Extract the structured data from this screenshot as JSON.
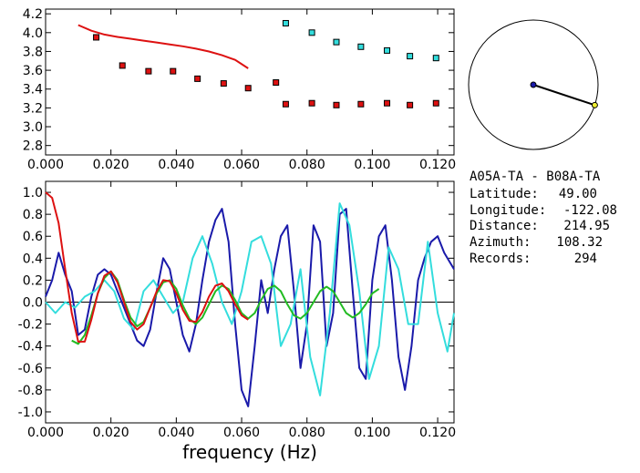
{
  "station_pair": "A05A-TA  -  B08A-TA",
  "info_rows": [
    {
      "label": "Latitude:",
      "value": "49.00"
    },
    {
      "label": "Longitude:",
      "value": "-122.08"
    },
    {
      "label": "Distance:",
      "value": "214.95"
    },
    {
      "label": "Azimuth:",
      "value": "108.32"
    },
    {
      "label": "Records:",
      "value": "294"
    }
  ],
  "colors": {
    "model_curve": "#dd1111",
    "marker_red": "#dd1111",
    "marker_cyan": "#33dddd",
    "blue": "#1a1aaa",
    "cyan": "#33dddd",
    "green": "#22bb22",
    "red": "#dd1111",
    "azimuth_line": "#000000",
    "azimuth_dot": "#1a1aaa",
    "azimuth_end": "#eeee33"
  },
  "chart_data": [
    {
      "type": "scatter",
      "xlim": [
        0.0,
        0.125
      ],
      "ylim": [
        2.7,
        4.25
      ],
      "x_ticks": [
        0.0,
        0.02,
        0.04,
        0.06,
        0.08,
        0.1,
        0.12
      ],
      "x_tick_labels": [
        "0.000",
        "0.020",
        "0.040",
        "0.060",
        "0.080",
        "0.100",
        "0.120"
      ],
      "y_ticks": [
        2.8,
        3.0,
        3.2,
        3.4,
        3.6,
        3.8,
        4.0,
        4.2
      ],
      "y_tick_labels": [
        "2.8",
        "3.0",
        "3.2",
        "3.4",
        "3.6",
        "3.8",
        "4.0",
        "4.2"
      ],
      "line": {
        "x": [
          0.01,
          0.014,
          0.018,
          0.022,
          0.026,
          0.03,
          0.034,
          0.038,
          0.042,
          0.046,
          0.05,
          0.054,
          0.058,
          0.062
        ],
        "y": [
          4.08,
          4.02,
          3.98,
          3.955,
          3.935,
          3.915,
          3.895,
          3.875,
          3.855,
          3.83,
          3.8,
          3.76,
          3.71,
          3.62
        ]
      },
      "series": [
        {
          "values": [
            [
              0.0155,
              3.95
            ],
            [
              0.0235,
              3.65
            ],
            [
              0.0315,
              3.59
            ],
            [
              0.039,
              3.59
            ],
            [
              0.0465,
              3.51
            ],
            [
              0.0545,
              3.46
            ],
            [
              0.062,
              3.41
            ],
            [
              0.0705,
              3.47
            ],
            [
              0.0735,
              3.24
            ],
            [
              0.0815,
              3.25
            ],
            [
              0.089,
              3.23
            ],
            [
              0.0965,
              3.24
            ],
            [
              0.1045,
              3.25
            ],
            [
              0.1115,
              3.23
            ],
            [
              0.1195,
              3.25
            ]
          ]
        },
        {
          "values": [
            [
              0.0735,
              4.1
            ],
            [
              0.0815,
              4.0
            ],
            [
              0.089,
              3.9
            ],
            [
              0.0965,
              3.85
            ],
            [
              0.1045,
              3.81
            ],
            [
              0.1115,
              3.75
            ],
            [
              0.1195,
              3.73
            ]
          ]
        }
      ]
    },
    {
      "type": "line",
      "xlim": [
        0.0,
        0.125
      ],
      "ylim": [
        -1.1,
        1.1
      ],
      "xlabel": "frequency  (Hz)",
      "x_ticks": [
        0.0,
        0.02,
        0.04,
        0.06,
        0.08,
        0.1,
        0.12
      ],
      "x_tick_labels": [
        "0.000",
        "0.020",
        "0.040",
        "0.060",
        "0.080",
        "0.100",
        "0.120"
      ],
      "y_ticks": [
        1.0,
        0.8,
        0.6,
        0.4,
        0.2,
        0.0,
        -0.2,
        -0.4,
        -0.6,
        -0.8,
        -1.0
      ],
      "y_tick_labels": [
        "1.0",
        "0.8",
        "0.6",
        "0.4",
        "0.2",
        "0.0",
        "-0.2",
        "-0.4",
        "-0.6",
        "-0.8",
        "-1.0"
      ],
      "zero_line": true,
      "series": [
        {
          "x": [
            0.0,
            0.002,
            0.004,
            0.006,
            0.008,
            0.01,
            0.012,
            0.014,
            0.016,
            0.018,
            0.02,
            0.022,
            0.024,
            0.026,
            0.028,
            0.03,
            0.032,
            0.034,
            0.036,
            0.038,
            0.04,
            0.042,
            0.044,
            0.046,
            0.048,
            0.05,
            0.052,
            0.054,
            0.056,
            0.058,
            0.06,
            0.062,
            0.064,
            0.066,
            0.068,
            0.07,
            0.072,
            0.074,
            0.076,
            0.078,
            0.08,
            0.082,
            0.084,
            0.086,
            0.088,
            0.09,
            0.092,
            0.094,
            0.096,
            0.098,
            0.1,
            0.102,
            0.104,
            0.106,
            0.108,
            0.11,
            0.112,
            0.114,
            0.116,
            0.118,
            0.12,
            0.122,
            0.125
          ],
          "y": [
            0.05,
            0.2,
            0.45,
            0.25,
            0.1,
            -0.3,
            -0.25,
            0.05,
            0.25,
            0.3,
            0.25,
            0.1,
            -0.05,
            -0.2,
            -0.35,
            -0.4,
            -0.25,
            0.1,
            0.4,
            0.3,
            0.0,
            -0.3,
            -0.45,
            -0.2,
            0.2,
            0.55,
            0.75,
            0.85,
            0.55,
            -0.2,
            -0.8,
            -0.95,
            -0.4,
            0.2,
            -0.1,
            0.3,
            0.6,
            0.7,
            0.1,
            -0.6,
            -0.2,
            0.7,
            0.55,
            -0.4,
            -0.1,
            0.8,
            0.85,
            0.1,
            -0.6,
            -0.7,
            0.2,
            0.6,
            0.7,
            0.2,
            -0.5,
            -0.8,
            -0.4,
            0.2,
            0.4,
            0.55,
            0.6,
            0.45,
            0.3
          ]
        },
        {
          "x": [
            0.0,
            0.003,
            0.006,
            0.009,
            0.012,
            0.015,
            0.018,
            0.021,
            0.024,
            0.027,
            0.03,
            0.033,
            0.036,
            0.039,
            0.042,
            0.045,
            0.048,
            0.051,
            0.054,
            0.057,
            0.06,
            0.063,
            0.066,
            0.069,
            0.072,
            0.075,
            0.078,
            0.081,
            0.084,
            0.087,
            0.09,
            0.093,
            0.096,
            0.099,
            0.102,
            0.105,
            0.108,
            0.111,
            0.114,
            0.117,
            0.12,
            0.123,
            0.125
          ],
          "y": [
            0.0,
            -0.1,
            0.0,
            -0.05,
            0.05,
            0.1,
            0.2,
            0.1,
            -0.15,
            -0.25,
            0.1,
            0.2,
            0.05,
            -0.1,
            0.0,
            0.4,
            0.6,
            0.35,
            0.0,
            -0.2,
            0.1,
            0.55,
            0.6,
            0.35,
            -0.4,
            -0.2,
            0.3,
            -0.5,
            -0.85,
            -0.1,
            0.9,
            0.7,
            0.1,
            -0.7,
            -0.4,
            0.5,
            0.3,
            -0.2,
            -0.2,
            0.55,
            -0.1,
            -0.45,
            -0.1
          ]
        },
        {
          "x": [
            0.008,
            0.01,
            0.012,
            0.014,
            0.016,
            0.018,
            0.02,
            0.022,
            0.024,
            0.026,
            0.028,
            0.03,
            0.032,
            0.034,
            0.036,
            0.038,
            0.04,
            0.042,
            0.044,
            0.046,
            0.048,
            0.05,
            0.052,
            0.054,
            0.056,
            0.058,
            0.06,
            0.062,
            0.064,
            0.066,
            0.068,
            0.07,
            0.072,
            0.074,
            0.076,
            0.078,
            0.08,
            0.082,
            0.084,
            0.086,
            0.088,
            0.09,
            0.092,
            0.094,
            0.096,
            0.098,
            0.1,
            0.102
          ],
          "y": [
            -0.35,
            -0.38,
            -0.3,
            -0.12,
            0.08,
            0.22,
            0.28,
            0.2,
            0.02,
            -0.14,
            -0.22,
            -0.18,
            -0.05,
            0.08,
            0.18,
            0.2,
            0.12,
            -0.03,
            -0.15,
            -0.2,
            -0.14,
            -0.02,
            0.1,
            0.15,
            0.12,
            0.02,
            -0.1,
            -0.15,
            -0.1,
            0.02,
            0.12,
            0.15,
            0.1,
            -0.02,
            -0.12,
            -0.15,
            -0.1,
            0.0,
            0.1,
            0.14,
            0.1,
            0.0,
            -0.1,
            -0.14,
            -0.1,
            -0.02,
            0.08,
            0.12
          ]
        },
        {
          "x": [
            0.0,
            0.002,
            0.004,
            0.006,
            0.008,
            0.01,
            0.012,
            0.014,
            0.016,
            0.018,
            0.02,
            0.022,
            0.024,
            0.026,
            0.028,
            0.03,
            0.032,
            0.034,
            0.036,
            0.038,
            0.04,
            0.042,
            0.044,
            0.046,
            0.048,
            0.05,
            0.052,
            0.054,
            0.056,
            0.058,
            0.06,
            0.062
          ],
          "y": [
            1.0,
            0.95,
            0.72,
            0.3,
            -0.1,
            -0.36,
            -0.36,
            -0.16,
            0.08,
            0.24,
            0.28,
            0.18,
            0.0,
            -0.18,
            -0.25,
            -0.2,
            -0.05,
            0.1,
            0.2,
            0.19,
            0.08,
            -0.07,
            -0.17,
            -0.18,
            -0.09,
            0.05,
            0.15,
            0.17,
            0.1,
            -0.02,
            -0.12,
            -0.16
          ]
        }
      ]
    },
    {
      "type": "azimuth_plot",
      "azimuth_deg": 108.32
    }
  ]
}
